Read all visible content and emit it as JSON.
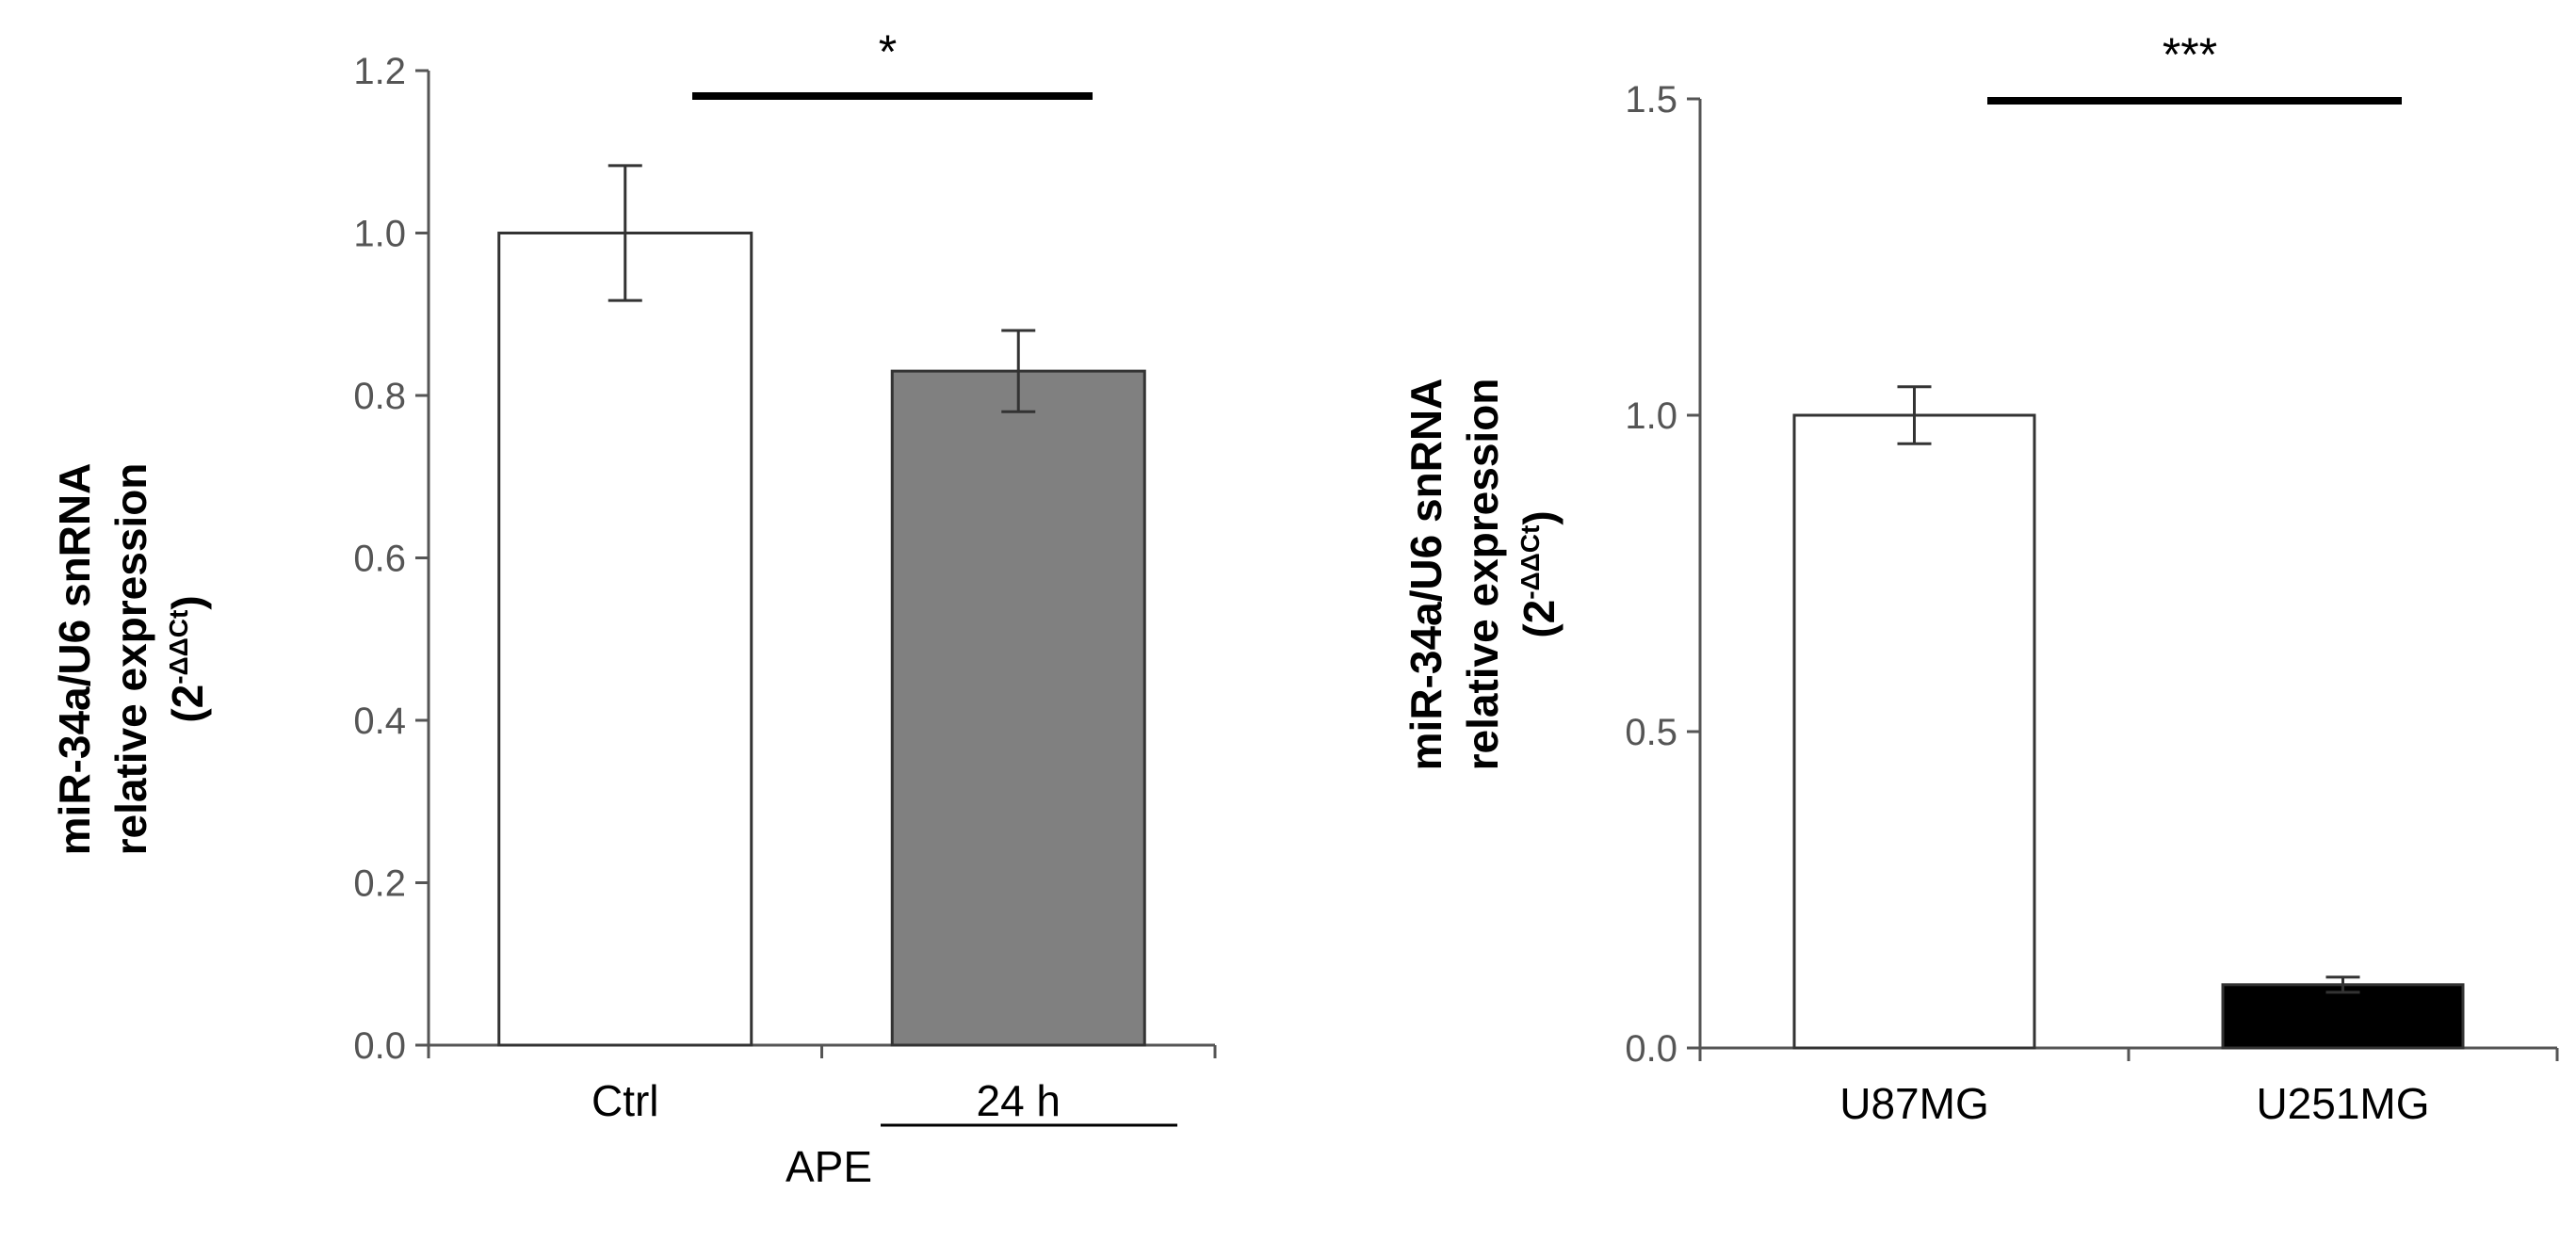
{
  "chart_data": [
    {
      "type": "bar",
      "categories": [
        "Ctrl",
        "24 h"
      ],
      "values": [
        1.0,
        0.83
      ],
      "errors": [
        0.083,
        0.05
      ],
      "bar_colors": [
        "#ffffff",
        "#808080"
      ],
      "ylim": [
        0,
        1.2
      ],
      "yticks": [
        "0.0",
        "0.2",
        "0.4",
        "0.6",
        "0.8",
        "1.0",
        "1.2"
      ],
      "ytick_values": [
        0,
        0.2,
        0.4,
        0.6,
        0.8,
        1.0,
        1.2
      ],
      "ylabel": [
        "miR-34a/U6 snRNA",
        "relative expression",
        "(2",
        "-ΔΔCt",
        ")"
      ],
      "group_label": "APE",
      "significance": "*"
    },
    {
      "type": "bar",
      "categories": [
        "U87MG",
        "U251MG"
      ],
      "values": [
        1.0,
        0.1
      ],
      "errors": [
        0.045,
        0.012
      ],
      "bar_colors": [
        "#ffffff",
        "#000000"
      ],
      "ylim": [
        0,
        1.5
      ],
      "yticks": [
        "0.0",
        "0.5",
        "1.0",
        "1.5"
      ],
      "ytick_values": [
        0,
        0.5,
        1.0,
        1.5
      ],
      "ylabel": [
        "miR-34a/U6 snRNA",
        "relative expression",
        "(2",
        "-ΔΔCt",
        ")"
      ],
      "significance": "***"
    }
  ]
}
